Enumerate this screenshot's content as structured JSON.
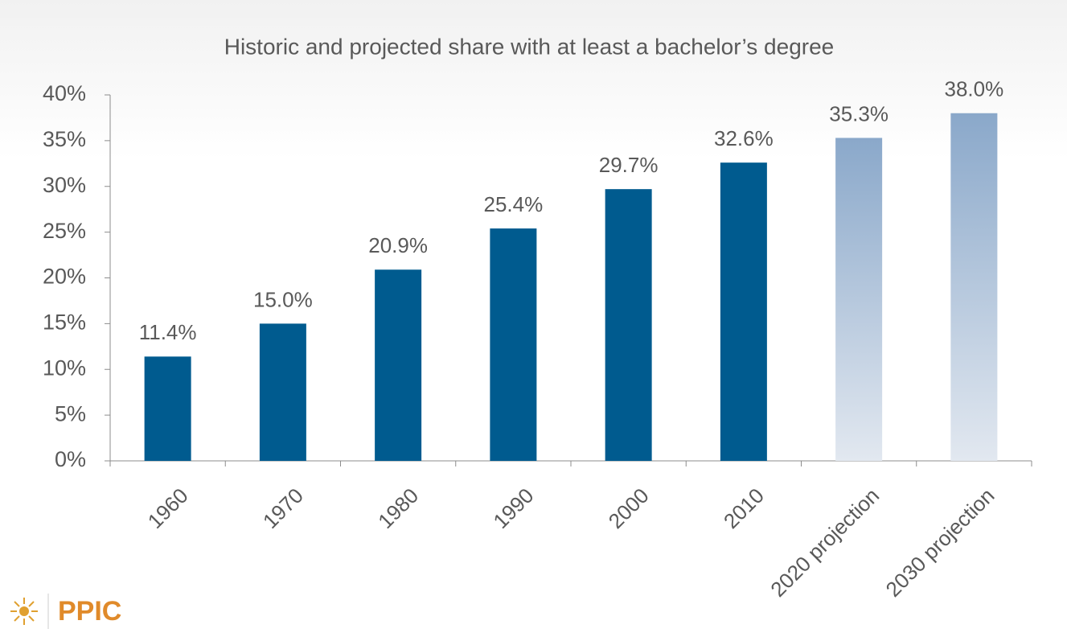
{
  "chart_data": {
    "type": "bar",
    "title": "Historic and projected share with at least a bachelor’s degree",
    "categories": [
      "1960",
      "1970",
      "1980",
      "1990",
      "2000",
      "2010",
      "2020 projection",
      "2030 projection"
    ],
    "values": [
      11.4,
      15.0,
      20.9,
      25.4,
      29.7,
      32.6,
      35.3,
      38.0
    ],
    "value_labels": [
      "11.4%",
      "15.0%",
      "20.9%",
      "25.4%",
      "29.7%",
      "32.6%",
      "35.3%",
      "38.0%"
    ],
    "colors": [
      "#005b8f",
      "#005b8f",
      "#005b8f",
      "#005b8f",
      "#005b8f",
      "#005b8f",
      [
        "#8aa8ca",
        "#e2e8f0"
      ],
      [
        "#8aa8ca",
        "#e2e8f0"
      ]
    ],
    "ylim": [
      0,
      40
    ],
    "yticks": [
      {
        "value": 0,
        "label": "0%"
      },
      {
        "value": 5,
        "label": "5%"
      },
      {
        "value": 10,
        "label": "10%"
      },
      {
        "value": 15,
        "label": "15%"
      },
      {
        "value": 20,
        "label": "20%"
      },
      {
        "value": 25,
        "label": "25%"
      },
      {
        "value": 30,
        "label": "30%"
      },
      {
        "value": 35,
        "label": "35%"
      },
      {
        "value": 40,
        "label": "40%"
      }
    ],
    "grid": false
  },
  "logo": "PPIC"
}
